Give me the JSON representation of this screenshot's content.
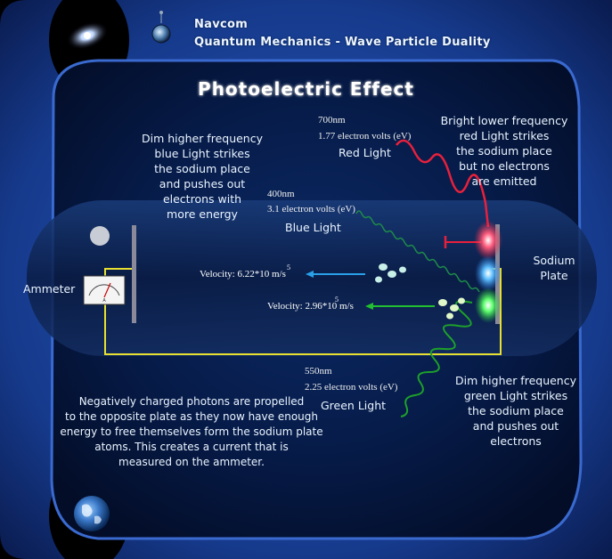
{
  "header": {
    "brand": "Navcom",
    "subtitle": "Quantum Mechanics  -  Wave Particle Duality"
  },
  "title": "Photoelectric Effect",
  "red_light": {
    "wavelength": "700nm",
    "energy": "1.77 electron volts (eV)",
    "label": "Red Light",
    "description": [
      "Bright lower frequency",
      "red Light strikes",
      "the sodium place",
      "but no electrons",
      "are  emitted"
    ]
  },
  "blue_light": {
    "wavelength": "400nm",
    "energy": "3.1 electron volts (eV)",
    "label": "Blue Light",
    "description": [
      "Dim higher frequency",
      "blue Light strikes",
      "the sodium place",
      "and pushes out",
      "electrons with",
      "more energy"
    ],
    "velocity": "Velocity: 6.22*10  m/s",
    "velocity_exp": "5"
  },
  "green_light": {
    "wavelength": "550nm",
    "energy": "2.25 electron volts (eV)",
    "label": "Green Light",
    "description": [
      "Dim higher frequency",
      "green Light strikes",
      "the sodium place",
      "and pushes out",
      "electrons"
    ],
    "velocity": "Velocity: 2.96*10  m/s",
    "velocity_exp": "5"
  },
  "ammeter_label": "Ammeter",
  "sodium_label": [
    "Sodium",
    "Plate"
  ],
  "explanation": [
    "Negatively charged photons are propelled",
    "to the opposite plate as they now have enough",
    "energy to free themselves form the sodium plate",
    "atoms. This creates a current that is",
    "measured on the ammeter."
  ],
  "colors": {
    "red": "#e8203c",
    "blue": "#2aa0e8",
    "green": "#22c030",
    "circuit": "#e8e030",
    "frame": "#1a3a8a"
  }
}
